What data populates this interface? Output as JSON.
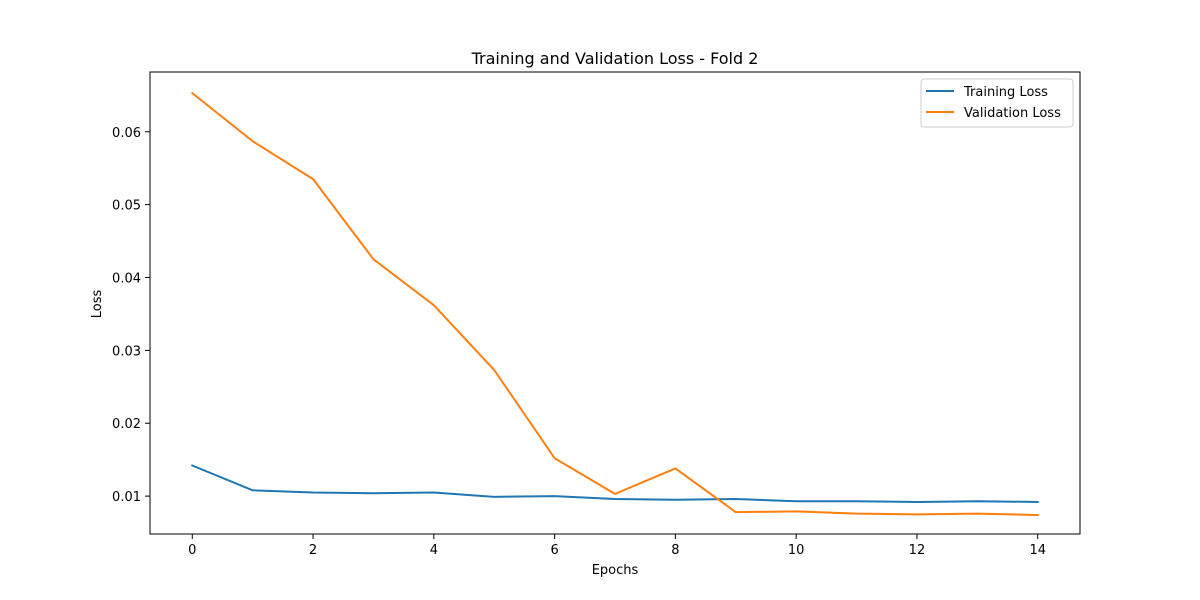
{
  "chart_data": {
    "type": "line",
    "title": "Training and Validation Loss - Fold 2",
    "xlabel": "Epochs",
    "ylabel": "Loss",
    "x": [
      0,
      1,
      2,
      3,
      4,
      5,
      6,
      7,
      8,
      9,
      10,
      11,
      12,
      13,
      14
    ],
    "xlim": [
      -0.7,
      14.7
    ],
    "ylim": [
      0.0048,
      0.0682
    ],
    "xticks": [
      0,
      2,
      4,
      6,
      8,
      10,
      12,
      14
    ],
    "yticks": [
      0.01,
      0.02,
      0.03,
      0.04,
      0.05,
      0.06
    ],
    "xtick_labels": [
      "0",
      "2",
      "4",
      "6",
      "8",
      "10",
      "12",
      "14"
    ],
    "ytick_labels": [
      "0.01",
      "0.02",
      "0.03",
      "0.04",
      "0.05",
      "0.06"
    ],
    "grid": false,
    "legend_position": "top-right",
    "series": [
      {
        "name": "Training Loss",
        "color": "#1f77b4",
        "values": [
          0.0142,
          0.0108,
          0.0105,
          0.0104,
          0.0105,
          0.0099,
          0.01,
          0.0096,
          0.0095,
          0.0096,
          0.0093,
          0.0093,
          0.0092,
          0.0093,
          0.0092
        ]
      },
      {
        "name": "Validation Loss",
        "color": "#ff7f0e",
        "values": [
          0.0653,
          0.0587,
          0.0535,
          0.0425,
          0.0362,
          0.0273,
          0.0152,
          0.0103,
          0.0138,
          0.0078,
          0.0079,
          0.0076,
          0.0075,
          0.0076,
          0.0074
        ]
      }
    ]
  }
}
